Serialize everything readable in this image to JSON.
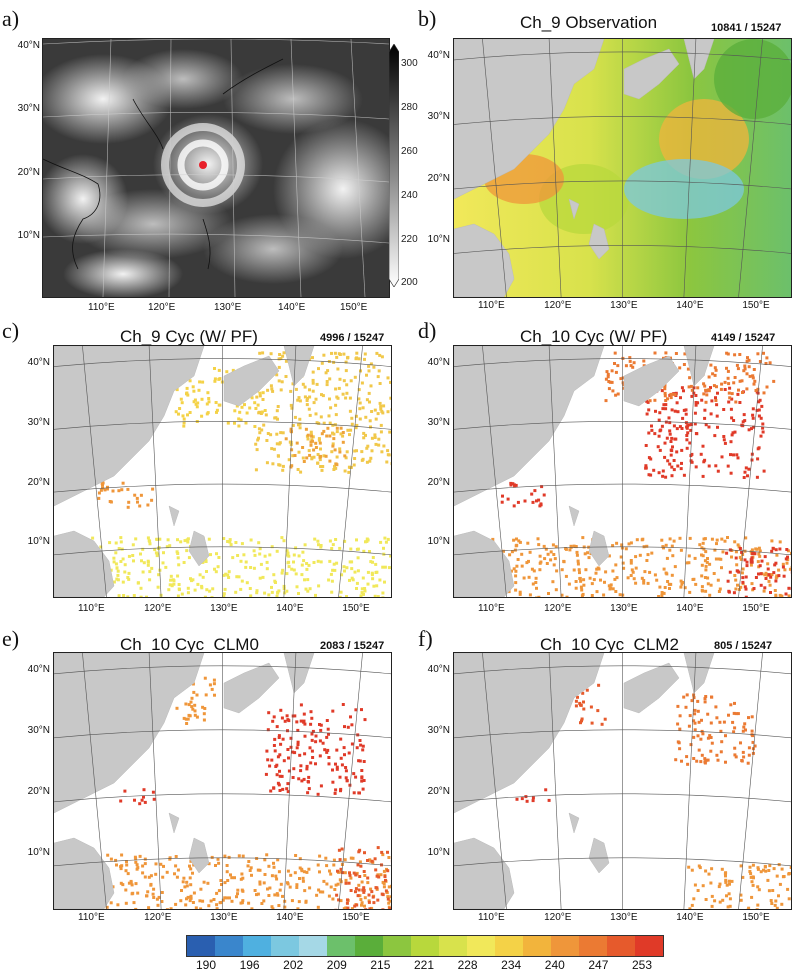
{
  "panels": {
    "a": {
      "letter": "a)",
      "title": "",
      "count": "",
      "lat_labels": [
        "40°N",
        "30°N",
        "20°N",
        "10°N"
      ],
      "lon_labels": [
        "110°E",
        "120°E",
        "130°E",
        "140°E",
        "150°E"
      ],
      "cb_ticks": [
        "300",
        "280",
        "260",
        "240",
        "220",
        "200"
      ]
    },
    "b": {
      "letter": "b)",
      "title": "Ch_9 Observation",
      "count": "10841 / 15247"
    },
    "c": {
      "letter": "c)",
      "title": "Ch_9 Cyc (W/ PF)",
      "count": "4996 / 15247"
    },
    "d": {
      "letter": "d)",
      "title": "Ch_10 Cyc (W/ PF)",
      "count": "4149 / 15247"
    },
    "e": {
      "letter": "e)",
      "title": "Ch_10 Cyc_CLM0",
      "count": "2083 / 15247"
    },
    "f": {
      "letter": "f)",
      "title": "Ch_10 Cyc_CLM2",
      "count": "805 / 15247"
    }
  },
  "lat_labels": [
    "40°N",
    "30°N",
    "20°N",
    "10°N"
  ],
  "lon_labels": [
    "110°E",
    "120°E",
    "130°E",
    "140°E",
    "150°E"
  ],
  "colorbar": {
    "colors": [
      "#2a5fb0",
      "#3a86cc",
      "#4fb0e0",
      "#7cc8e0",
      "#a5d8e6",
      "#6cc06b",
      "#5aae3a",
      "#8cc63f",
      "#b8d83c",
      "#d8e24c",
      "#f1e85a",
      "#f4d247",
      "#f2b43c",
      "#ef963a",
      "#eb7a33",
      "#e65a2c",
      "#e03a28"
    ],
    "labels": [
      "190",
      "196",
      "202",
      "209",
      "215",
      "221",
      "228",
      "234",
      "240",
      "247",
      "253"
    ]
  },
  "markers": {
    "typhoon_center_color": "#e8202a"
  }
}
